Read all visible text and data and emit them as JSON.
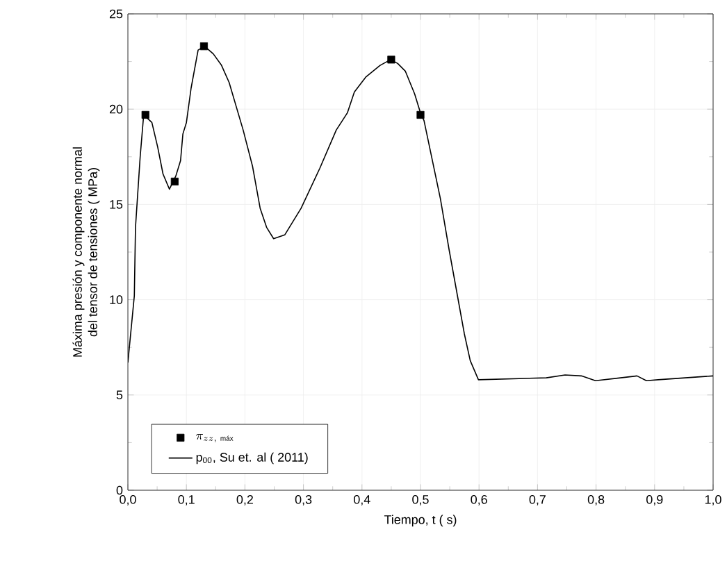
{
  "chart_data": {
    "type": "line",
    "xlabel": "Tiempo, t  ( s)",
    "ylabel": "Máxima  presión y componente normal\ndel tensor de tensiones  ( MPa)",
    "xlim": [
      0,
      1
    ],
    "ylim": [
      0,
      25
    ],
    "xticks": [
      {
        "value": 0,
        "label": "0,0"
      },
      {
        "value": 0.1,
        "label": "0,1"
      },
      {
        "value": 0.2,
        "label": "0,2"
      },
      {
        "value": 0.3,
        "label": "0,3"
      },
      {
        "value": 0.4,
        "label": "0,4"
      },
      {
        "value": 0.5,
        "label": "0,5"
      },
      {
        "value": 0.6,
        "label": "0,6"
      },
      {
        "value": 0.7,
        "label": "0,7"
      },
      {
        "value": 0.8,
        "label": "0,8"
      },
      {
        "value": 0.9,
        "label": "0,9"
      },
      {
        "value": 1,
        "label": "1,0"
      }
    ],
    "yticks": [
      0,
      5,
      10,
      15,
      20,
      25
    ],
    "grid": true,
    "legend": "bottom left",
    "series": [
      {
        "name": "\\pi_{zz,\\ \\mbox{\\tiny máx}}",
        "type": "scatter",
        "marker": "square",
        "color": "#000000",
        "x": [
          0.03,
          0.08,
          0.13,
          0.45,
          0.5
        ],
        "values": [
          19.7,
          16.2,
          23.3,
          22.6,
          19.7
        ]
      },
      {
        "name": "p$_{00}$, Su et. al  ( 2011)",
        "line_style": "solid",
        "color": "#000000",
        "x": [
          0.0,
          0.011,
          0.013,
          0.021,
          0.027,
          0.041,
          0.051,
          0.06,
          0.071,
          0.082,
          0.09,
          0.094,
          0.1,
          0.108,
          0.12,
          0.131,
          0.146,
          0.16,
          0.173,
          0.197,
          0.213,
          0.226,
          0.237,
          0.249,
          0.268,
          0.296,
          0.328,
          0.356,
          0.375,
          0.387,
          0.407,
          0.431,
          0.449,
          0.461,
          0.474,
          0.49,
          0.5,
          0.506,
          0.534,
          0.549,
          0.575,
          0.585,
          0.599,
          0.715,
          0.747,
          0.775,
          0.799,
          0.842,
          0.87,
          0.886,
          0.906,
          1.0
        ],
        "values": [
          6.7,
          10.2,
          13.8,
          17.5,
          19.7,
          19.3,
          18.0,
          16.6,
          15.8,
          16.5,
          17.3,
          18.7,
          19.3,
          21.1,
          23.1,
          23.3,
          22.9,
          22.3,
          21.4,
          18.9,
          17.0,
          14.8,
          13.8,
          13.2,
          13.4,
          14.8,
          16.9,
          18.9,
          19.8,
          20.9,
          21.7,
          22.3,
          22.6,
          22.4,
          22.0,
          20.8,
          19.8,
          19.4,
          15.3,
          12.6,
          8.2,
          6.8,
          5.8,
          5.9,
          6.05,
          6.0,
          5.75,
          5.9,
          6.0,
          5.75,
          5.8,
          6.0
        ]
      }
    ]
  }
}
